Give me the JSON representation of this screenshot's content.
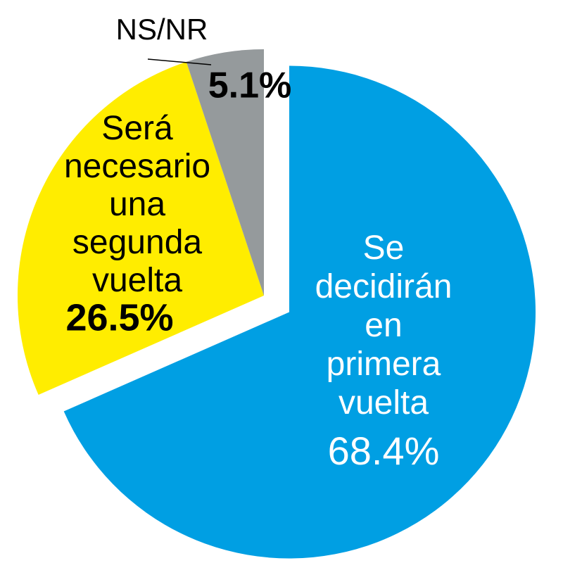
{
  "chart_data": {
    "type": "pie",
    "categories": [
      "Se decidirán en primera vuelta",
      "Será necesario una segunda vuelta",
      "NS/NR"
    ],
    "values": [
      68.4,
      26.5,
      5.1
    ],
    "value_labels": [
      "68.4%",
      "26.5%",
      "5.1%"
    ],
    "colors": [
      "#009fe3",
      "#ffed00",
      "#959a9c"
    ]
  }
}
